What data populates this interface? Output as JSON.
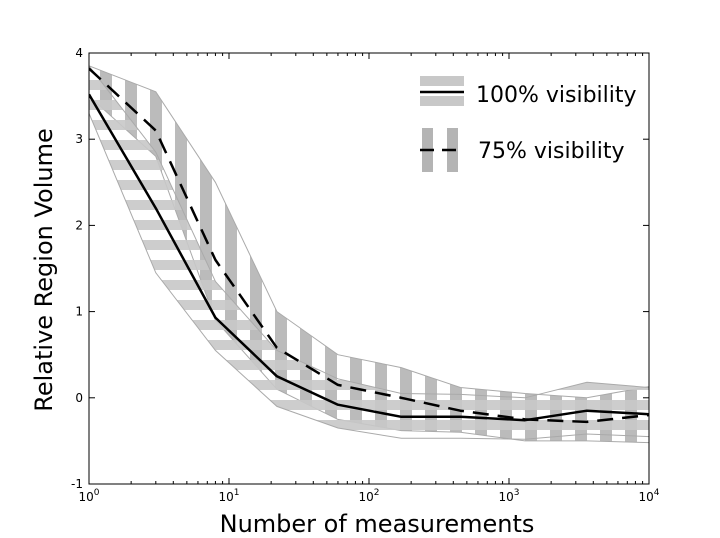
{
  "chart_data": {
    "type": "line",
    "title": "",
    "xlabel": "Number of measurements",
    "ylabel": "Relative Region Volume",
    "xscale": "log",
    "xlim": [
      1,
      10000
    ],
    "ylim": [
      -1,
      4
    ],
    "x_ticks": [
      {
        "base": "10",
        "exp": "0",
        "value": 1
      },
      {
        "base": "10",
        "exp": "1",
        "value": 10
      },
      {
        "base": "10",
        "exp": "2",
        "value": 100
      },
      {
        "base": "10",
        "exp": "3",
        "value": 1000
      },
      {
        "base": "10",
        "exp": "4",
        "value": 10000
      }
    ],
    "y_ticks": [
      "-1",
      "0",
      "1",
      "2",
      "3",
      "4"
    ],
    "legend_position": "top-right",
    "series": [
      {
        "name": "100% visibility",
        "line_style": "solid",
        "band_pattern": "horizontal-stripes",
        "x": [
          1,
          3,
          8,
          22,
          60,
          170,
          450,
          1300,
          3600,
          10000
        ],
        "values": [
          3.52,
          2.2,
          0.93,
          0.25,
          -0.08,
          -0.22,
          -0.22,
          -0.26,
          -0.15,
          -0.19
        ],
        "upper": [
          3.85,
          2.85,
          1.35,
          0.55,
          0.22,
          0.05,
          0.04,
          0.0,
          0.18,
          0.12
        ],
        "lower": [
          3.3,
          1.45,
          0.55,
          -0.1,
          -0.35,
          -0.47,
          -0.47,
          -0.48,
          -0.42,
          -0.45
        ]
      },
      {
        "name": "75% visibility",
        "line_style": "dashed",
        "band_pattern": "vertical-stripes",
        "x": [
          1,
          3,
          8,
          22,
          60,
          170,
          450,
          1300,
          3600,
          10000
        ],
        "values": [
          3.82,
          3.1,
          1.6,
          0.58,
          0.15,
          0.0,
          -0.15,
          -0.25,
          -0.28,
          -0.2
        ],
        "upper": [
          3.85,
          3.55,
          2.5,
          1.0,
          0.5,
          0.35,
          0.12,
          0.05,
          0.0,
          0.13
        ],
        "lower": [
          3.5,
          2.8,
          0.9,
          0.1,
          -0.25,
          -0.38,
          -0.4,
          -0.5,
          -0.5,
          -0.52
        ]
      }
    ]
  }
}
